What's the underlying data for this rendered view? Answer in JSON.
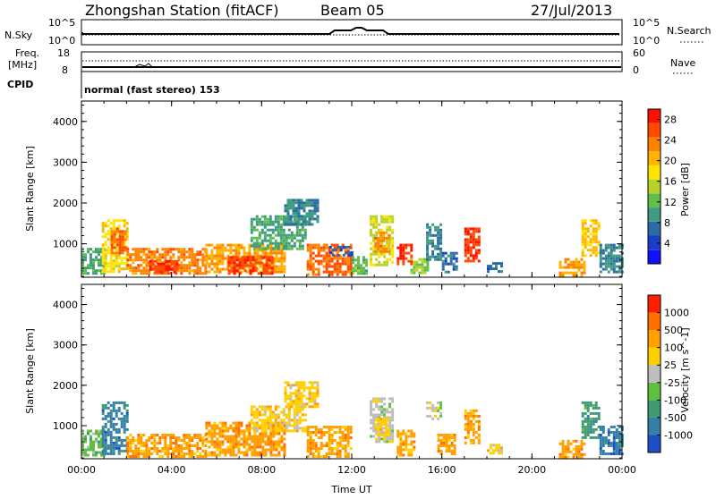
{
  "header": {
    "station": "Zhongshan Station (fitACF)",
    "beam": "Beam 05",
    "date": "27/Jul/2013"
  },
  "top_panels": {
    "nsky_label": "N.Sky",
    "nsky_ticks": [
      "10^5",
      "10^0"
    ],
    "nsearch_label": "N.Search",
    "nsearch_ticks": [
      "10^5",
      "10^0"
    ],
    "freq_label": "Freq.",
    "freq_unit": "[MHz]",
    "freq_ticks": [
      "18",
      "8"
    ],
    "nave_label": "Nave",
    "nave_ticks": [
      "60",
      "0"
    ],
    "cpid_label": "CPID",
    "cpid_text": "normal (fast stereo) 153"
  },
  "chart_data": [
    {
      "type": "heatmap",
      "title": "",
      "ylabel": "Slant Range [km]",
      "xlabel": "",
      "x_ticks": [
        "00:00",
        "04:00",
        "08:00",
        "12:00",
        "16:00",
        "20:00",
        "00:00"
      ],
      "x_range_hours": [
        0,
        24
      ],
      "y_ticks": [
        "1000",
        "2000",
        "3000",
        "4000"
      ],
      "ylim": [
        180,
        4500
      ],
      "colorbar": {
        "label": "Power [dB]",
        "ticks": [
          "4",
          "8",
          "12",
          "16",
          "20",
          "24",
          "28"
        ],
        "range": [
          0,
          30
        ],
        "colors": [
          "#1010ff",
          "#1a3fc4",
          "#2c6aa8",
          "#3e9a80",
          "#5fbf4a",
          "#b7d22b",
          "#ffe400",
          "#ffb300",
          "#ff8200",
          "#ff4a00",
          "#ff1000"
        ]
      },
      "regions": [
        {
          "t0": 0.0,
          "t1": 1.0,
          "r0": 250,
          "r1": 900,
          "v": 10
        },
        {
          "t0": 0.9,
          "t1": 2.0,
          "r0": 300,
          "r1": 1600,
          "v": 18
        },
        {
          "t0": 1.3,
          "t1": 1.9,
          "r0": 800,
          "r1": 1400,
          "v": 26
        },
        {
          "t0": 2.0,
          "t1": 5.5,
          "r0": 250,
          "r1": 900,
          "v": 24
        },
        {
          "t0": 3.0,
          "t1": 4.2,
          "r0": 300,
          "r1": 600,
          "v": 28
        },
        {
          "t0": 5.5,
          "t1": 9.0,
          "r0": 300,
          "r1": 1000,
          "v": 22
        },
        {
          "t0": 6.5,
          "t1": 8.5,
          "r0": 300,
          "r1": 700,
          "v": 28
        },
        {
          "t0": 7.5,
          "t1": 10.0,
          "r0": 900,
          "r1": 1700,
          "v": 10
        },
        {
          "t0": 9.0,
          "t1": 10.5,
          "r0": 1500,
          "r1": 2100,
          "v": 8
        },
        {
          "t0": 10.0,
          "t1": 12.0,
          "r0": 250,
          "r1": 1000,
          "v": 26
        },
        {
          "t0": 11.0,
          "t1": 12.0,
          "r0": 700,
          "r1": 950,
          "v": 4
        },
        {
          "t0": 12.0,
          "t1": 12.6,
          "r0": 250,
          "r1": 700,
          "v": 12
        },
        {
          "t0": 12.8,
          "t1": 13.8,
          "r0": 500,
          "r1": 1700,
          "v": 16
        },
        {
          "t0": 13.0,
          "t1": 13.6,
          "r0": 800,
          "r1": 1300,
          "v": 24
        },
        {
          "t0": 14.0,
          "t1": 14.6,
          "r0": 500,
          "r1": 1000,
          "v": 28
        },
        {
          "t0": 14.6,
          "t1": 15.4,
          "r0": 300,
          "r1": 650,
          "v": 14
        },
        {
          "t0": 15.3,
          "t1": 15.9,
          "r0": 600,
          "r1": 1500,
          "v": 8
        },
        {
          "t0": 16.0,
          "t1": 16.6,
          "r0": 300,
          "r1": 800,
          "v": 6
        },
        {
          "t0": 17.0,
          "t1": 17.7,
          "r0": 600,
          "r1": 1400,
          "v": 28
        },
        {
          "t0": 18.0,
          "t1": 18.6,
          "r0": 300,
          "r1": 550,
          "v": 6
        },
        {
          "t0": 21.2,
          "t1": 22.3,
          "r0": 250,
          "r1": 650,
          "v": 22
        },
        {
          "t0": 22.2,
          "t1": 23.0,
          "r0": 700,
          "r1": 1600,
          "v": 20
        },
        {
          "t0": 23.0,
          "t1": 24.0,
          "r0": 300,
          "r1": 1000,
          "v": 8
        }
      ]
    },
    {
      "type": "heatmap",
      "title": "",
      "ylabel": "Slant Range [km]",
      "xlabel": "Time UT",
      "x_ticks": [
        "00:00",
        "04:00",
        "08:00",
        "12:00",
        "16:00",
        "20:00",
        "00:00"
      ],
      "x_range_hours": [
        0,
        24
      ],
      "y_ticks": [
        "1000",
        "2000",
        "3000",
        "4000"
      ],
      "ylim": [
        180,
        4500
      ],
      "colorbar": {
        "label": "Velocity [m s^-1]",
        "ticks": [
          "1000",
          "500",
          "100",
          "25",
          "-25",
          "-100",
          "-500",
          "-1000"
        ],
        "range": [
          -1200,
          1200
        ],
        "colors": [
          "#1f4fc8",
          "#3480a8",
          "#3e9a70",
          "#5fc040",
          "#bdbdbd",
          "#ffd000",
          "#ffa000",
          "#ff7000",
          "#ff2000"
        ]
      },
      "regions": [
        {
          "t0": 0.0,
          "t1": 1.0,
          "r0": 250,
          "r1": 900,
          "v": 3
        },
        {
          "t0": 0.9,
          "t1": 2.0,
          "r0": 300,
          "r1": 1600,
          "v": 1
        },
        {
          "t0": 2.0,
          "t1": 5.5,
          "r0": 250,
          "r1": 800,
          "v": 6
        },
        {
          "t0": 5.5,
          "t1": 9.0,
          "r0": 300,
          "r1": 1100,
          "v": 6
        },
        {
          "t0": 7.5,
          "t1": 10.0,
          "r0": 900,
          "r1": 1500,
          "v": 5
        },
        {
          "t0": 9.0,
          "t1": 10.5,
          "r0": 1500,
          "r1": 2100,
          "v": 5
        },
        {
          "t0": 10.0,
          "t1": 12.0,
          "r0": 250,
          "r1": 1000,
          "v": 6
        },
        {
          "t0": 12.8,
          "t1": 13.8,
          "r0": 600,
          "r1": 1700,
          "v": 4
        },
        {
          "t0": 13.0,
          "t1": 13.6,
          "r0": 800,
          "r1": 1200,
          "v": 5
        },
        {
          "t0": 14.0,
          "t1": 14.8,
          "r0": 300,
          "r1": 900,
          "v": 6
        },
        {
          "t0": 15.3,
          "t1": 15.9,
          "r0": 1200,
          "r1": 1600,
          "v": 4
        },
        {
          "t0": 15.8,
          "t1": 16.6,
          "r0": 300,
          "r1": 800,
          "v": 6
        },
        {
          "t0": 17.0,
          "t1": 17.7,
          "r0": 600,
          "r1": 1400,
          "v": 6
        },
        {
          "t0": 18.0,
          "t1": 18.6,
          "r0": 300,
          "r1": 550,
          "v": 5
        },
        {
          "t0": 21.2,
          "t1": 22.3,
          "r0": 250,
          "r1": 650,
          "v": 6
        },
        {
          "t0": 22.2,
          "t1": 23.0,
          "r0": 700,
          "r1": 1600,
          "v": 2
        },
        {
          "t0": 23.0,
          "t1": 24.0,
          "r0": 300,
          "r1": 1000,
          "v": 1
        }
      ]
    }
  ]
}
